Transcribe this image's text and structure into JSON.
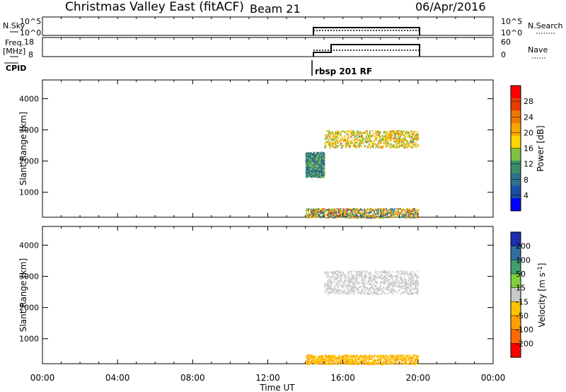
{
  "header": {
    "title": "Christmas Valley East (fitACF)",
    "beam": "Beam 21",
    "date": "06/Apr/2016"
  },
  "top_panels": {
    "nsky": {
      "label": "N.Sky",
      "left_ticks": [
        "10^5",
        "10^0"
      ],
      "right_ticks": [
        "10^5",
        "10^0"
      ],
      "right_label": "N.Search"
    },
    "freq": {
      "label_line1": "Freq.",
      "label_line2": "[MHz]",
      "left_ticks": [
        "18",
        "8"
      ],
      "right_ticks": [
        "60",
        "0"
      ],
      "right_label": "Nave"
    },
    "cpid": {
      "label": "CPID",
      "annotation": "rbsp 201 RF"
    }
  },
  "colors": {
    "power_scale": [
      "#0000ff",
      "#1c4fa3",
      "#2f6f8f",
      "#3a8f6a",
      "#7fc241",
      "#ffd400",
      "#f7a600",
      "#f07800",
      "#e83d00",
      "#ff0000"
    ],
    "velocity_scale": [
      "#ff0000",
      "#ff6a00",
      "#ff9f00",
      "#ffc400",
      "#c8c8c8",
      "#7fcf3f",
      "#3f9f6f",
      "#2f6fa3",
      "#1c2fb0"
    ]
  },
  "chart_data": [
    {
      "type": "heatmap",
      "name": "power",
      "ylabel": "Slant Range [km]",
      "yticks": [
        "4000",
        "3000",
        "2000",
        "1000"
      ],
      "ylim": [
        200,
        4600
      ],
      "xlim": [
        "00:00",
        "24:00"
      ],
      "colorbar_label": "Power [dB]",
      "colorbar_ticks": [
        "28",
        "24",
        "20",
        "16",
        "12",
        "8",
        "4"
      ],
      "colorbar_range": [
        0,
        32
      ],
      "data_time_range": [
        "14:00",
        "20:00"
      ],
      "features": [
        {
          "range_km": [
            2450,
            3000
          ],
          "time": [
            "15:00",
            "20:00"
          ],
          "dominant": "orange/yellow",
          "values_db": [
            12,
            24
          ]
        },
        {
          "range_km": [
            1500,
            2300
          ],
          "time": [
            "14:00",
            "15:00"
          ],
          "dominant": "green/blue",
          "values_db": [
            4,
            16
          ]
        },
        {
          "range_km": [
            200,
            500
          ],
          "time": [
            "14:00",
            "20:00"
          ],
          "dominant": "mixed",
          "values_db": [
            4,
            28
          ]
        }
      ]
    },
    {
      "type": "heatmap",
      "name": "velocity",
      "ylabel": "Slant Range [km]",
      "yticks": [
        "4000",
        "3000",
        "2000",
        "1000"
      ],
      "ylim": [
        200,
        4600
      ],
      "xlim": [
        "00:00",
        "24:00"
      ],
      "xlabel": "Time UT",
      "xticks": [
        "00:00",
        "04:00",
        "08:00",
        "12:00",
        "16:00",
        "20:00",
        "00:00"
      ],
      "colorbar_label": "Velocity [m s^-1]",
      "colorbar_ticks": [
        "200",
        "100",
        "50",
        "15",
        "-15",
        "-50",
        "-100",
        "-200"
      ],
      "colorbar_range": [
        -250,
        250
      ],
      "data_time_range": [
        "14:00",
        "20:00"
      ],
      "features": [
        {
          "range_km": [
            2450,
            3200
          ],
          "time": [
            "15:00",
            "20:00"
          ],
          "dominant": "gray (ground scatter)",
          "values_ms": [
            -15,
            15
          ]
        },
        {
          "range_km": [
            200,
            500
          ],
          "time": [
            "14:00",
            "20:00"
          ],
          "dominant": "orange",
          "values_ms": [
            -100,
            -50
          ]
        }
      ]
    }
  ]
}
